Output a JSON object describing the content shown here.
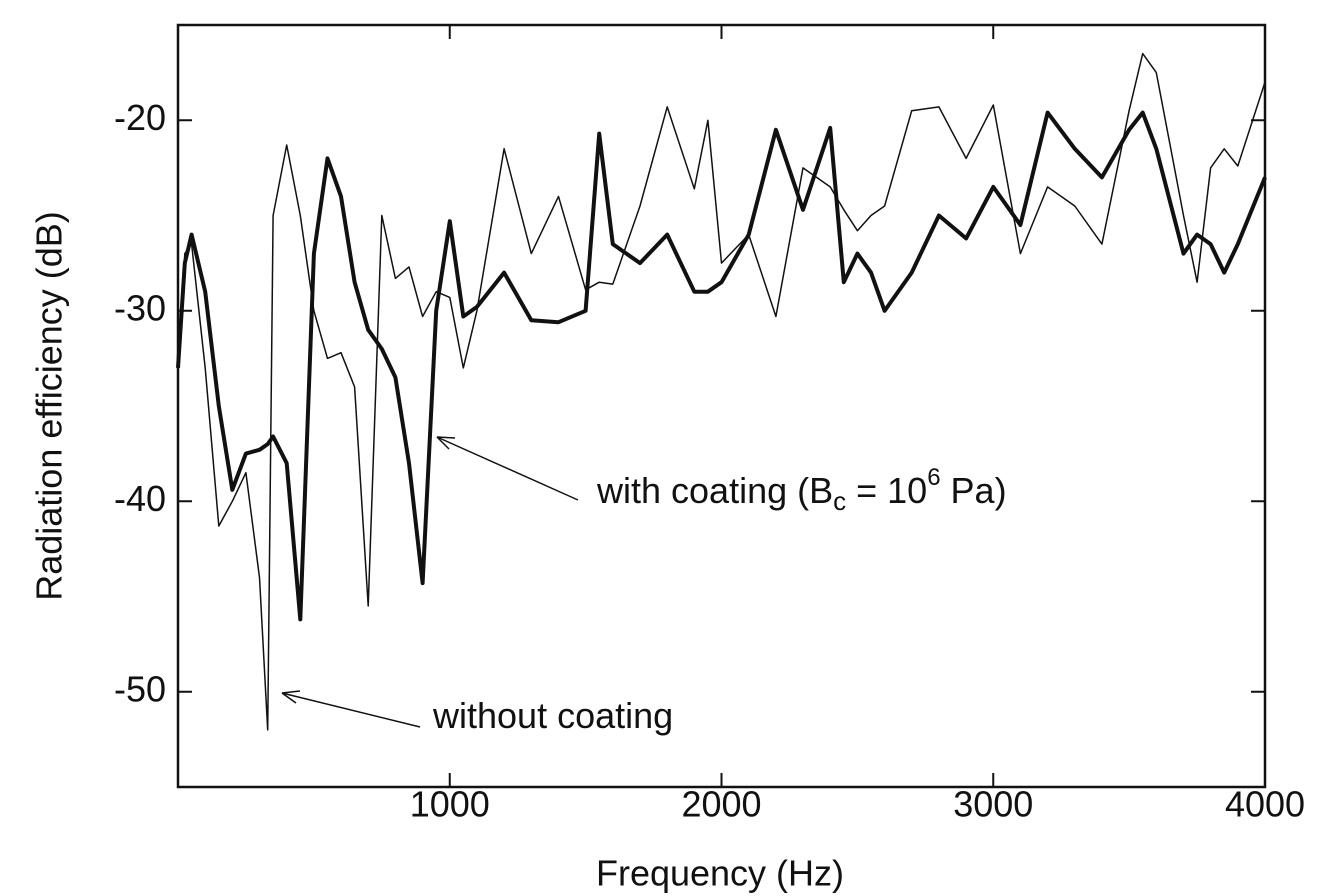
{
  "chart_data": {
    "type": "line",
    "xlabel": "Frequency (Hz)",
    "ylabel": "Radiation efficiency (dB)",
    "annotations": {
      "without": "without coating",
      "with_a": "with coating (B",
      "with_sub": "c",
      "with_b": " = 10",
      "with_sup": "6",
      "with_c": " Pa)"
    },
    "x": [
      0,
      25,
      50,
      100,
      150,
      200,
      250,
      300,
      330,
      350,
      400,
      450,
      500,
      550,
      600,
      650,
      700,
      750,
      800,
      850,
      900,
      950,
      1000,
      1050,
      1100,
      1200,
      1300,
      1400,
      1500,
      1550,
      1600,
      1700,
      1800,
      1900,
      1950,
      2000,
      2100,
      2200,
      2300,
      2400,
      2450,
      2500,
      2550,
      2600,
      2700,
      2800,
      2900,
      3000,
      3100,
      3200,
      3300,
      3400,
      3500,
      3550,
      3600,
      3700,
      3750,
      3800,
      3850,
      3900,
      4000
    ],
    "series": [
      {
        "color": "#111111",
        "width": 4,
        "values": [
          -33,
          -27.5,
          -26,
          -29,
          -35,
          -39.4,
          -37.5,
          -37.3,
          -37,
          -36.6,
          -38,
          -46.2,
          -27,
          -22,
          -24,
          -28.5,
          -31,
          -32,
          -33.5,
          -38,
          -44.3,
          -30,
          -25.3,
          -30.3,
          -29.8,
          -28,
          -30.5,
          -30.6,
          -30,
          -20.7,
          -26.5,
          -27.5,
          -26,
          -29,
          -29,
          -28.5,
          -26,
          -20.5,
          -24.7,
          -20.4,
          -28.5,
          -27,
          -28,
          -30,
          -28,
          -25,
          -26.2,
          -23.5,
          -25.5,
          -19.6,
          -21.5,
          -23,
          -20.5,
          -19.6,
          -21.5,
          -27,
          -26,
          -26.5,
          -28,
          -26.5,
          -23
        ]
      },
      {
        "color": "#111111",
        "width": 1.5,
        "values": [
          -33,
          -27,
          -26.5,
          -33,
          -41.3,
          -40,
          -38.5,
          -44,
          -52,
          -25,
          -21.3,
          -25,
          -30,
          -32.5,
          -32.2,
          -34,
          -45.5,
          -25,
          -28.3,
          -27.7,
          -30.3,
          -29,
          -29.3,
          -33,
          -30,
          -21.5,
          -27,
          -24,
          -28.9,
          -28.5,
          -28.6,
          -24.5,
          -19.3,
          -23.6,
          -20,
          -27.5,
          -26,
          -30.3,
          -22.5,
          -23.5,
          -24.7,
          -25.8,
          -25,
          -24.5,
          -19.5,
          -19.3,
          -22,
          -19.2,
          -27,
          -23.5,
          -24.5,
          -26.5,
          -19.5,
          -16.5,
          -17.5,
          -25,
          -28.5,
          -22.5,
          -21.5,
          -22.4,
          -18
        ]
      }
    ],
    "xlim": [
      0,
      4000
    ],
    "xticks": [
      1000,
      2000,
      3000,
      4000
    ],
    "ylim": [
      -55,
      -15
    ],
    "yticks": [
      -20,
      -30,
      -40,
      -50
    ]
  }
}
